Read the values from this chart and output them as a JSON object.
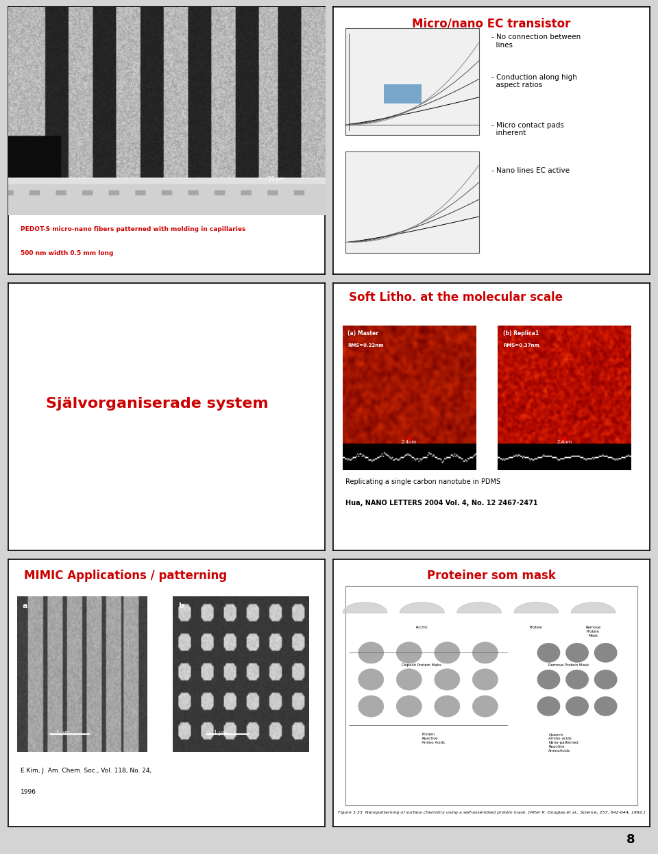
{
  "bg_color": "#d4d4d4",
  "panel_bg": "#ffffff",
  "border_color": "#000000",
  "red_color": "#cc0000",
  "panels": [
    {
      "id": "top_left",
      "col": 0,
      "row": 0,
      "caption_line1": "PEDOT-S micro-nano fibers patterned with molding in capillaries",
      "caption_line2": "500 nm width 0.5 mm long",
      "caption_color": "#cc0000"
    },
    {
      "id": "top_right",
      "col": 1,
      "row": 0,
      "title": "Micro/nano EC transistor",
      "title_color": "#cc0000",
      "bullets": [
        "- No connection between\n  lines",
        "- Conduction along high\n  aspect ratios",
        "- Micro contact pads\n  inherent",
        "- Nano lines EC active"
      ],
      "bullet_color": "#000000"
    },
    {
      "id": "mid_left",
      "col": 0,
      "row": 1,
      "title": "Självorganiserade system",
      "title_color": "#cc0000"
    },
    {
      "id": "mid_right",
      "col": 1,
      "row": 1,
      "title": "Soft Litho. at the molecular scale",
      "title_color": "#cc0000",
      "caption_line1": "Replicating a single carbon nanotube in PDMS",
      "caption_line2": "Hua, NANO LETTERS 2004 Vol. 4, No. 12 2467-2471"
    },
    {
      "id": "bot_left",
      "col": 0,
      "row": 2,
      "title": "MIMIC Applications / patterning",
      "title_color": "#cc0000",
      "caption_line1": "E.Kim, J. Am. Chem. Soc., Vol. 118, No. 24,",
      "caption_line2": "1996"
    },
    {
      "id": "bot_right",
      "col": 1,
      "row": 2,
      "title": "Proteiner som mask",
      "title_color": "#cc0000",
      "caption": "Figure 3.33  Nanopatterning of surface chemistry using a self-assembled protein mask. [After K. Douglas et al., Science, 257, 642-644, 1992.]"
    }
  ],
  "page_number": "8"
}
